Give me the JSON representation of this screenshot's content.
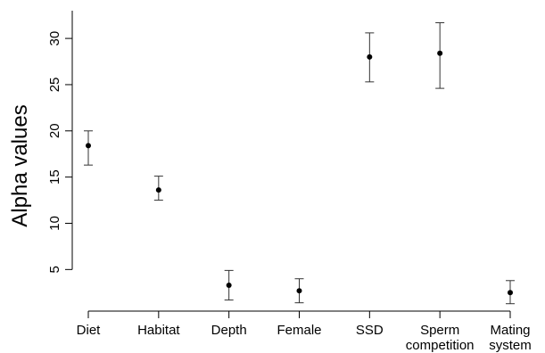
{
  "chart_data": {
    "type": "scatter",
    "title": "",
    "xlabel": "",
    "ylabel": "Alpha values",
    "categories": [
      [
        "Diet"
      ],
      [
        "Habitat"
      ],
      [
        "Depth"
      ],
      [
        "Female"
      ],
      [
        "SSD"
      ],
      [
        "Sperm",
        "competition"
      ],
      [
        "Mating",
        "system"
      ]
    ],
    "values": [
      18.4,
      13.6,
      3.3,
      2.7,
      28.0,
      28.4,
      2.5
    ],
    "error_low": [
      16.3,
      12.5,
      1.7,
      1.4,
      25.3,
      24.6,
      1.3
    ],
    "error_high": [
      20.0,
      15.1,
      4.9,
      4.0,
      30.6,
      31.7,
      3.8
    ],
    "ylim": [
      0.5,
      33
    ],
    "yticks": [
      5,
      10,
      15,
      20,
      25,
      30
    ],
    "grid": false,
    "legend": "none"
  }
}
